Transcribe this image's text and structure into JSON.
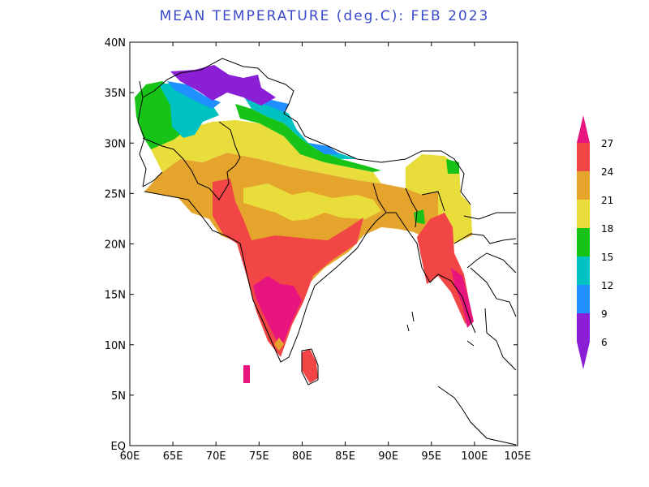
{
  "title": "MEAN TEMPERATURE (deg.C): FEB 2023",
  "map": {
    "lon_range": [
      60,
      105
    ],
    "lat_range": [
      0,
      40
    ],
    "lon_ticks": [
      "60E",
      "65E",
      "70E",
      "75E",
      "80E",
      "85E",
      "90E",
      "95E",
      "100E",
      "105E"
    ],
    "lat_ticks": [
      "EQ",
      "5N",
      "10N",
      "15N",
      "20N",
      "25N",
      "30N",
      "35N",
      "40N"
    ]
  },
  "colorbar": {
    "labels": [
      "6",
      "9",
      "12",
      "15",
      "18",
      "21",
      "24",
      "27"
    ],
    "colors": [
      "#8a1fd6",
      "#1e90ff",
      "#00c2c2",
      "#16c316",
      "#e8dd3a",
      "#e5a52c",
      "#f24646",
      "#e8157f"
    ],
    "below_color": "#8a1fd6",
    "above_color": "#e8157f"
  }
}
